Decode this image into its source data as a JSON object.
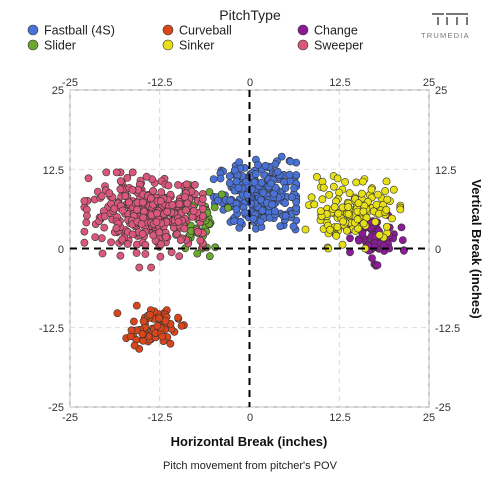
{
  "brand": {
    "name": "TRUMEDIA"
  },
  "legend": {
    "title": "PitchType",
    "items": [
      {
        "name": "Fastball (4S)",
        "color": "#4a72d6"
      },
      {
        "name": "Curveball",
        "color": "#d9461c"
      },
      {
        "name": "Change",
        "color": "#8c1a99"
      },
      {
        "name": "Slider",
        "color": "#6aa82e"
      },
      {
        "name": "Sinker",
        "color": "#e8e017"
      },
      {
        "name": "Sweeper",
        "color": "#d8577a"
      }
    ]
  },
  "chart_data": {
    "type": "scatter",
    "title": "",
    "xlabel": "Horizontal Break (inches)",
    "ylabel": "Vertical Break (inches)",
    "caption": "Pitch movement from pitcher's POV",
    "xlim": [
      -25,
      25
    ],
    "ylim": [
      -25,
      25
    ],
    "ticks": [
      -25,
      -12.5,
      0,
      12.5,
      25
    ],
    "tick_labels": [
      "-25",
      "-12.5",
      "0",
      "12.5",
      "25"
    ],
    "grid": true,
    "legend_position": "top",
    "reference_lines": [
      {
        "axis": "x",
        "value": 0,
        "style": "dashed"
      },
      {
        "axis": "y",
        "value": 0,
        "style": "dashed"
      }
    ],
    "series": [
      {
        "name": "Fastball (4S)",
        "color": "#4a72d6",
        "cluster": {
          "center": [
            1.5,
            8.5
          ],
          "spread": [
            3.0,
            2.6
          ],
          "range_x": [
            -5,
            6.5
          ],
          "range_y": [
            3,
            14.5
          ],
          "count": 260
        }
      },
      {
        "name": "Curveball",
        "color": "#d9461c",
        "cluster": {
          "center": [
            -13.5,
            -12.5
          ],
          "spread": [
            1.8,
            1.4
          ],
          "range_x": [
            -19,
            -7.5
          ],
          "range_y": [
            -16.5,
            -9
          ],
          "count": 75
        }
      },
      {
        "name": "Change",
        "color": "#8c1a99",
        "cluster": {
          "center": [
            17.5,
            1.5
          ],
          "spread": [
            1.6,
            1.6
          ],
          "range_x": [
            14,
            21.5
          ],
          "range_y": [
            -6.5,
            5.5
          ],
          "count": 70
        }
      },
      {
        "name": "Slider",
        "color": "#6aa82e",
        "cluster": {
          "center": [
            -7.5,
            3.5
          ],
          "spread": [
            2.0,
            3.0
          ],
          "range_x": [
            -11,
            -3
          ],
          "range_y": [
            -4,
            10
          ],
          "count": 50
        }
      },
      {
        "name": "Sinker",
        "color": "#e8e017",
        "cluster": {
          "center": [
            14.5,
            6
          ],
          "spread": [
            3.0,
            2.4
          ],
          "range_x": [
            7,
            21
          ],
          "range_y": [
            0,
            13
          ],
          "count": 140
        }
      },
      {
        "name": "Sweeper",
        "color": "#d8577a",
        "cluster": {
          "center": [
            -14,
            5.5
          ],
          "spread": [
            4.0,
            2.6
          ],
          "range_x": [
            -23,
            -6.5
          ],
          "range_y": [
            -3,
            12
          ],
          "count": 360
        }
      }
    ]
  }
}
